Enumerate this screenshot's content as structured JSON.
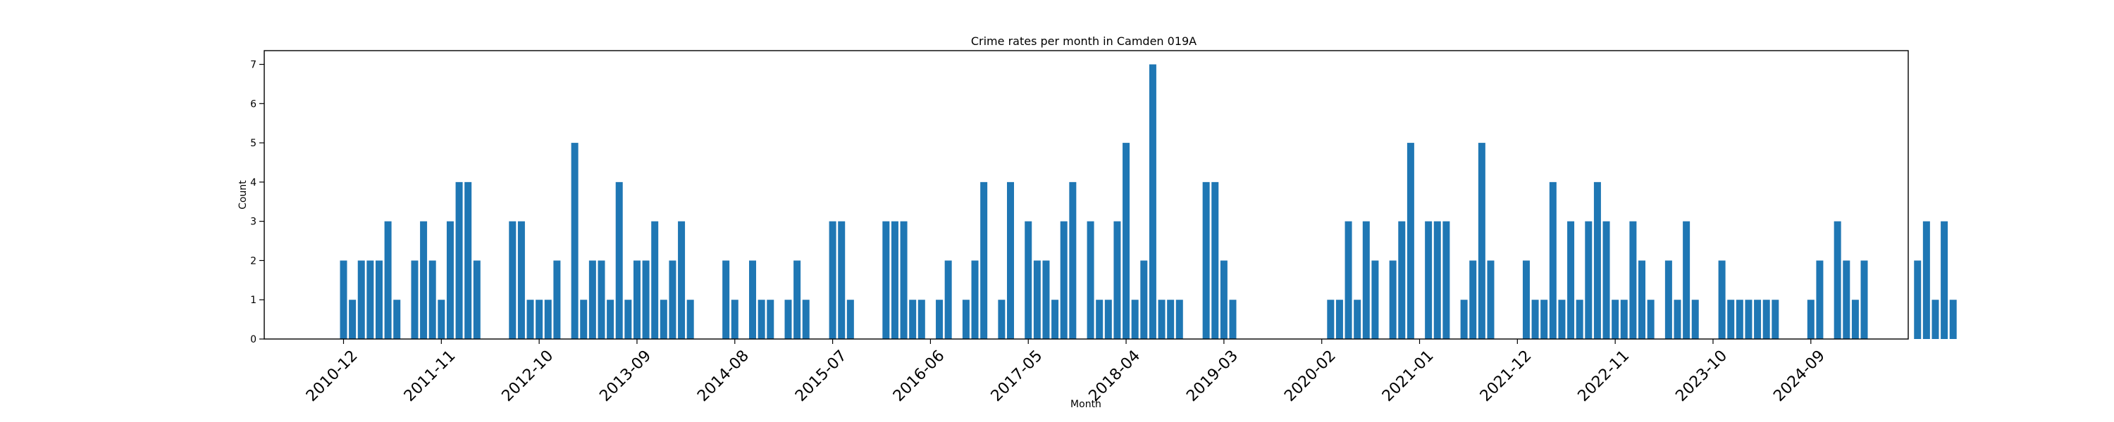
{
  "chart_data": {
    "type": "bar",
    "title": "Crime rates per month in Camden 019A",
    "xlabel": "Month",
    "ylabel": "Count",
    "ylim": [
      0,
      7.35
    ],
    "yticks": [
      0,
      1,
      2,
      3,
      4,
      5,
      6,
      7
    ],
    "xtick_labels": [
      "2010-12",
      "2011-11",
      "2012-10",
      "2013-09",
      "2014-08",
      "2015-07",
      "2016-06",
      "2017-05",
      "2018-04",
      "2019-03",
      "2020-02",
      "2021-01",
      "2021-12",
      "2022-11",
      "2023-10",
      "2024-09"
    ],
    "start_month": "2010-12",
    "grid": false,
    "bar_color": "#1f77b4",
    "values": [
      2,
      1,
      2,
      2,
      2,
      3,
      1,
      0,
      2,
      3,
      2,
      1,
      3,
      4,
      4,
      2,
      0,
      0,
      0,
      3,
      3,
      1,
      1,
      1,
      2,
      0,
      5,
      1,
      2,
      2,
      1,
      4,
      1,
      2,
      2,
      3,
      1,
      2,
      3,
      1,
      0,
      0,
      0,
      2,
      1,
      0,
      2,
      1,
      1,
      0,
      1,
      2,
      1,
      0,
      0,
      3,
      3,
      1,
      0,
      0,
      0,
      3,
      3,
      3,
      1,
      1,
      0,
      1,
      2,
      0,
      1,
      2,
      4,
      0,
      1,
      4,
      0,
      3,
      2,
      2,
      1,
      3,
      4,
      0,
      3,
      1,
      1,
      3,
      5,
      1,
      2,
      7,
      1,
      1,
      1,
      0,
      0,
      4,
      4,
      2,
      1,
      0,
      0,
      0,
      0,
      0,
      0,
      0,
      0,
      0,
      0,
      1,
      1,
      3,
      1,
      3,
      2,
      0,
      2,
      3,
      5,
      0,
      3,
      3,
      3,
      0,
      1,
      2,
      5,
      2,
      0,
      0,
      0,
      2,
      1,
      1,
      4,
      1,
      3,
      1,
      3,
      4,
      3,
      1,
      1,
      3,
      2,
      1,
      0,
      2,
      1,
      3,
      1,
      0,
      0,
      2,
      1,
      1,
      1,
      1,
      1,
      1,
      0,
      0,
      0,
      1,
      2,
      0,
      3,
      2,
      1,
      2,
      0,
      0,
      0,
      0,
      0,
      2,
      3,
      1,
      3,
      1
    ]
  }
}
